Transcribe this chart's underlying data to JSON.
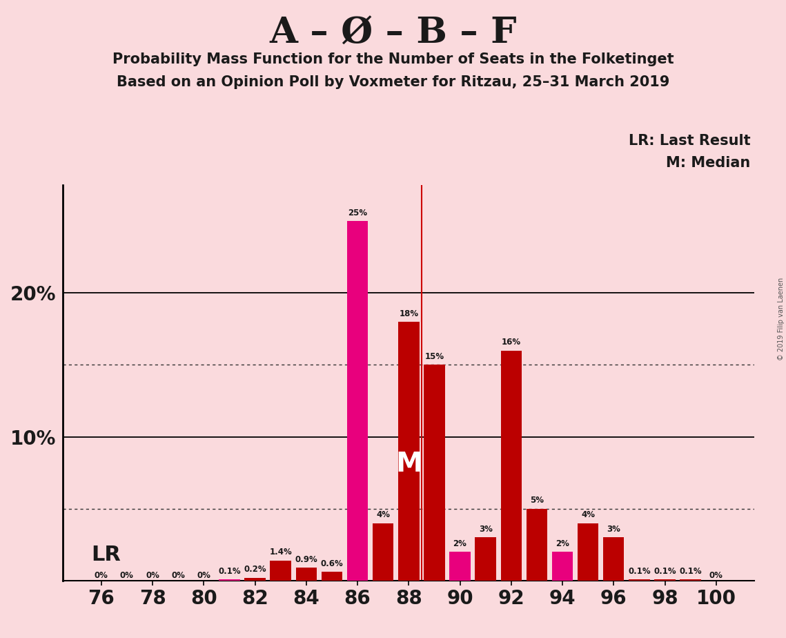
{
  "seats": [
    76,
    77,
    78,
    79,
    80,
    81,
    82,
    83,
    84,
    85,
    86,
    87,
    88,
    89,
    90,
    91,
    92,
    93,
    94,
    95,
    96,
    97,
    98,
    99,
    100
  ],
  "values": [
    0.0,
    0.0,
    0.0,
    0.0,
    0.0,
    0.1,
    0.2,
    1.4,
    0.9,
    0.6,
    25.0,
    4.0,
    18.0,
    15.0,
    2.0,
    3.0,
    16.0,
    5.0,
    2.0,
    4.0,
    3.0,
    0.1,
    0.1,
    0.1,
    0.0
  ],
  "colors": [
    "#E8007D",
    "#E8007D",
    "#E8007D",
    "#E8007D",
    "#E8007D",
    "#E8007D",
    "#BB0000",
    "#BB0000",
    "#BB0000",
    "#BB0000",
    "#E8007D",
    "#BB0000",
    "#BB0000",
    "#BB0000",
    "#E8007D",
    "#BB0000",
    "#BB0000",
    "#BB0000",
    "#E8007D",
    "#BB0000",
    "#BB0000",
    "#BB0000",
    "#BB0000",
    "#BB0000",
    "#E8007D"
  ],
  "labels": [
    "0%",
    "0%",
    "0%",
    "0%",
    "0%",
    "0.1%",
    "0.2%",
    "1.4%",
    "0.9%",
    "0.6%",
    "25%",
    "4%",
    "18%",
    "15%",
    "2%",
    "3%",
    "16%",
    "5%",
    "2%",
    "4%",
    "3%",
    "0.1%",
    "0.1%",
    "0.1%",
    "0%"
  ],
  "last_result_seat": 89,
  "median_seat": 88,
  "title1": "A – Ø – B – F",
  "title2": "Probability Mass Function for the Number of Seats in the Folketinget",
  "title3": "Based on an Opinion Poll by Voxmeter for Ritzau, 25–31 March 2019",
  "bg_color": "#FADADD",
  "lr_line_color": "#CC0000",
  "lr_label": "LR",
  "median_label": "M",
  "legend_lr": "LR: Last Result",
  "legend_m": "M: Median",
  "dotted_line_values": [
    5.0,
    15.0
  ],
  "solid_line_values": [
    10.0,
    20.0
  ],
  "ylim": [
    0,
    27.5
  ],
  "copyright": "© 2019 Filip van Laenen"
}
